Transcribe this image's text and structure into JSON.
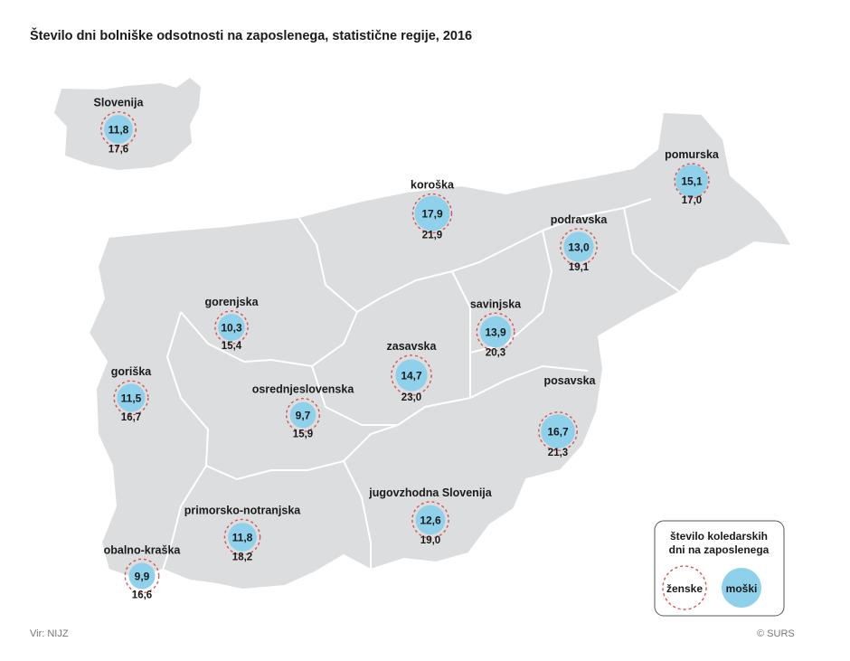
{
  "title": "Število dni bolniške odsotnosti na zaposlenega, statistične regije, 2016",
  "source": "Vir: NIJZ",
  "copyright": "© SURS",
  "colors": {
    "male_fill": "#8fd0ea",
    "female_ring": "#d9534f",
    "map_fill": "#dcdddf",
    "map_border": "#ffffff",
    "legend_border": "#555555"
  },
  "legend": {
    "title_line1": "število koledarskih",
    "title_line2": "dni na zaposlenega",
    "female": "ženske",
    "male": "moški"
  },
  "chart_data": {
    "type": "proportional-symbol map",
    "title": "Število dni bolniške odsotnosti na zaposlenega, statistične regije, 2016",
    "series": [
      {
        "name": "moški",
        "values": [
          11.8,
          17.9,
          15.1,
          13.0,
          10.3,
          13.9,
          14.7,
          11.5,
          9.7,
          16.7,
          12.6,
          11.8,
          9.9
        ]
      },
      {
        "name": "ženske",
        "values": [
          17.6,
          21.9,
          17.0,
          19.1,
          15.4,
          20.3,
          23.0,
          16.7,
          15.9,
          21.3,
          19.0,
          18.2,
          16.6
        ]
      }
    ],
    "categories": [
      "Slovenija",
      "koroška",
      "pomurska",
      "podravska",
      "gorenjska",
      "savinjska",
      "zasavska",
      "goriška",
      "osrednjeslovenska",
      "posavska",
      "jugovzhodna Slovenija",
      "primorsko-notranjska",
      "obalno-kraška"
    ],
    "regions": [
      {
        "name": "Slovenija",
        "male": "11,8",
        "female": "17,6",
        "male_value": 11.8,
        "female_value": 17.6
      },
      {
        "name": "koroška",
        "male": "17,9",
        "female": "21,9",
        "male_value": 17.9,
        "female_value": 21.9
      },
      {
        "name": "pomurska",
        "male": "15,1",
        "female": "17,0",
        "male_value": 15.1,
        "female_value": 17.0
      },
      {
        "name": "podravska",
        "male": "13,0",
        "female": "19,1",
        "male_value": 13.0,
        "female_value": 19.1
      },
      {
        "name": "gorenjska",
        "male": "10,3",
        "female": "15,4",
        "male_value": 10.3,
        "female_value": 15.4
      },
      {
        "name": "savinjska",
        "male": "13,9",
        "female": "20,3",
        "male_value": 13.9,
        "female_value": 20.3
      },
      {
        "name": "zasavska",
        "male": "14,7",
        "female": "23,0",
        "male_value": 14.7,
        "female_value": 23.0
      },
      {
        "name": "goriška",
        "male": "11,5",
        "female": "16,7",
        "male_value": 11.5,
        "female_value": 16.7
      },
      {
        "name": "osrednjeslovenska",
        "male": "9,7",
        "female": "15,9",
        "male_value": 9.7,
        "female_value": 15.9
      },
      {
        "name": "posavska",
        "male": "16,7",
        "female": "21,3",
        "male_value": 16.7,
        "female_value": 21.3
      },
      {
        "name": "jugovzhodna Slovenija",
        "male": "12,6",
        "female": "19,0",
        "male_value": 12.6,
        "female_value": 19.0
      },
      {
        "name": "primorsko-notranjska",
        "male": "11,8",
        "female": "18,2",
        "male_value": 11.8,
        "female_value": 18.2
      },
      {
        "name": "obalno-kraška",
        "male": "9,9",
        "female": "16,6",
        "male_value": 9.9,
        "female_value": 16.6
      }
    ]
  }
}
